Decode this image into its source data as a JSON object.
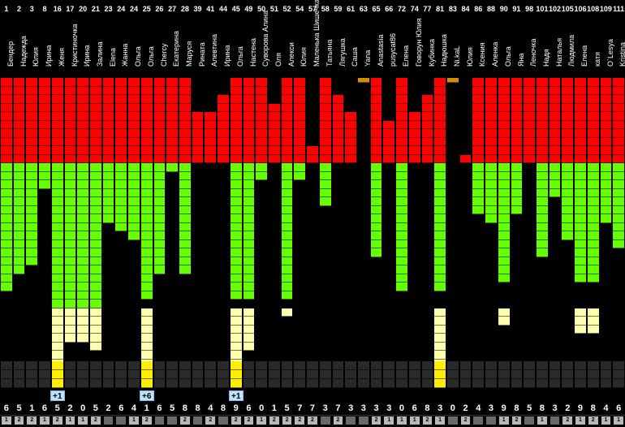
{
  "colors": {
    "red": "#ff0000",
    "green": "#66ff00",
    "cream": "#ffffb0",
    "yellow": "#ffee00",
    "orange": "#d09000",
    "greyFiller": "#2a2a2a"
  },
  "columns": [
    {
      "num": "1",
      "name": "Бендер",
      "score": "6",
      "badge": "1",
      "red": 10,
      "green": 15,
      "cream": 0,
      "yellow": 0,
      "orange": 0
    },
    {
      "num": "2",
      "name": "Надежда",
      "score": "5",
      "badge": "2",
      "red": 10,
      "green": 13,
      "cream": 0,
      "yellow": 0,
      "orange": 0
    },
    {
      "num": "3",
      "name": "Юлия",
      "score": "1",
      "badge": "2",
      "red": 10,
      "green": 12,
      "cream": 0,
      "yellow": 0,
      "orange": 0
    },
    {
      "num": "8",
      "name": "Ирина",
      "score": "6",
      "badge": "1",
      "red": 10,
      "green": 3,
      "cream": 0,
      "yellow": 0,
      "orange": 0
    },
    {
      "num": "16",
      "name": "Женя",
      "score": "5",
      "badge": "2",
      "red": 10,
      "green": 17,
      "cream": 7,
      "yellow": 3,
      "orange": 0
    },
    {
      "num": "17",
      "name": "Кристиночка",
      "score": "2",
      "badge": "1",
      "red": 10,
      "green": 17,
      "cream": 4,
      "yellow": 0,
      "orange": 0
    },
    {
      "num": "20",
      "name": "Ирина",
      "score": "0",
      "badge": "1",
      "red": 10,
      "green": 17,
      "cream": 4,
      "yellow": 0,
      "orange": 0
    },
    {
      "num": "21",
      "name": "Залина",
      "score": "5",
      "badge": "2",
      "red": 10,
      "green": 17,
      "cream": 5,
      "yellow": 0,
      "orange": 0
    },
    {
      "num": "23",
      "name": "Elena",
      "score": "2",
      "badge": "",
      "red": 10,
      "green": 7,
      "cream": 0,
      "yellow": 0,
      "orange": 0
    },
    {
      "num": "24",
      "name": "Жанна",
      "score": "6",
      "badge": "",
      "red": 10,
      "green": 8,
      "cream": 0,
      "yellow": 0,
      "orange": 0
    },
    {
      "num": "24",
      "name": "Ольга",
      "score": "4",
      "badge": "1",
      "red": 10,
      "green": 9,
      "cream": 0,
      "yellow": 0,
      "orange": 0
    },
    {
      "num": "25",
      "name": "Ольга",
      "score": "1",
      "badge": "2",
      "red": 10,
      "green": 16,
      "cream": 7,
      "yellow": 3,
      "orange": 0
    },
    {
      "num": "26",
      "name": "Chercy",
      "score": "6",
      "badge": "",
      "red": 10,
      "green": 13,
      "cream": 0,
      "yellow": 0,
      "orange": 0
    },
    {
      "num": "27",
      "name": "Екатерина",
      "score": "5",
      "badge": "",
      "red": 10,
      "green": 1,
      "cream": 0,
      "yellow": 0,
      "orange": 0
    },
    {
      "num": "28",
      "name": "Маруся",
      "score": "8",
      "badge": "2",
      "red": 10,
      "green": 13,
      "cream": 0,
      "yellow": 0,
      "orange": 0
    },
    {
      "num": "39",
      "name": "Рината",
      "score": "8",
      "badge": "",
      "red": 6,
      "green": 0,
      "cream": 0,
      "yellow": 0,
      "orange": 0
    },
    {
      "num": "41",
      "name": "Алевтина",
      "score": "4",
      "badge": "2",
      "red": 6,
      "green": 0,
      "cream": 0,
      "yellow": 0,
      "orange": 0
    },
    {
      "num": "44",
      "name": "Ирина",
      "score": "8",
      "badge": "",
      "red": 8,
      "green": 0,
      "cream": 0,
      "yellow": 0,
      "orange": 0
    },
    {
      "num": "45",
      "name": "Ольга",
      "score": "9",
      "badge": "2",
      "red": 10,
      "green": 16,
      "cream": 7,
      "yellow": 3,
      "orange": 0
    },
    {
      "num": "49",
      "name": "Настена",
      "score": "6",
      "badge": "2",
      "red": 10,
      "green": 16,
      "cream": 5,
      "yellow": 0,
      "orange": 0
    },
    {
      "num": "50",
      "name": "Суворова Алина",
      "score": "0",
      "badge": "1",
      "red": 10,
      "green": 2,
      "cream": 0,
      "yellow": 0,
      "orange": 0
    },
    {
      "num": "51",
      "name": "Оля",
      "score": "1",
      "badge": "2",
      "red": 7,
      "green": 0,
      "cream": 0,
      "yellow": 0,
      "orange": 0
    },
    {
      "num": "52",
      "name": "Алекси",
      "score": "5",
      "badge": "2",
      "red": 10,
      "green": 16,
      "cream": 1,
      "yellow": 0,
      "orange": 0
    },
    {
      "num": "54",
      "name": "Юлия",
      "score": "7",
      "badge": "2",
      "red": 10,
      "green": 2,
      "cream": 0,
      "yellow": 0,
      "orange": 0
    },
    {
      "num": "57",
      "name": "Маленька Шишечка",
      "score": "7",
      "badge": "2",
      "red": 2,
      "green": 0,
      "cream": 0,
      "yellow": 0,
      "orange": 0
    },
    {
      "num": "58",
      "name": "Татьяна",
      "score": "3",
      "badge": "",
      "red": 10,
      "green": 5,
      "cream": 0,
      "yellow": 0,
      "orange": 0
    },
    {
      "num": "59",
      "name": "Лягушка",
      "score": "7",
      "badge": "2",
      "red": 8,
      "green": 0,
      "cream": 0,
      "yellow": 0,
      "orange": 0
    },
    {
      "num": "61",
      "name": "Саша",
      "score": "3",
      "badge": "",
      "red": 6,
      "green": 0,
      "cream": 0,
      "yellow": 0,
      "orange": 0
    },
    {
      "num": "63",
      "name": "Yana",
      "score": "3",
      "badge": "",
      "red": 0,
      "green": 0,
      "cream": 0,
      "yellow": 0,
      "orange": 1
    },
    {
      "num": "65",
      "name": "Anastasia",
      "score": "3",
      "badge": "2",
      "red": 10,
      "green": 11,
      "cream": 0,
      "yellow": 0,
      "orange": 0
    },
    {
      "num": "66",
      "name": "pusycat86",
      "score": "3",
      "badge": "1",
      "red": 5,
      "green": 0,
      "cream": 0,
      "yellow": 0,
      "orange": 0
    },
    {
      "num": "72",
      "name": "Елена",
      "score": "0",
      "badge": "1",
      "red": 10,
      "green": 15,
      "cream": 0,
      "yellow": 0,
      "orange": 0
    },
    {
      "num": "74",
      "name": "Говорун Юлия",
      "score": "6",
      "badge": "1",
      "red": 6,
      "green": 0,
      "cream": 0,
      "yellow": 0,
      "orange": 0
    },
    {
      "num": "77",
      "name": "Кубинка",
      "score": "8",
      "badge": "2",
      "red": 8,
      "green": 0,
      "cream": 0,
      "yellow": 0,
      "orange": 0
    },
    {
      "num": "81",
      "name": "Надюшка",
      "score": "3",
      "badge": "1",
      "red": 10,
      "green": 15,
      "cream": 7,
      "yellow": 3,
      "orange": 0
    },
    {
      "num": "83",
      "name": "Ni.kaL",
      "score": "0",
      "badge": "",
      "red": 0,
      "green": 0,
      "cream": 0,
      "yellow": 0,
      "orange": 1
    },
    {
      "num": "84",
      "name": "Юлия",
      "score": "2",
      "badge": "2",
      "red": 1,
      "green": 0,
      "cream": 0,
      "yellow": 0,
      "orange": 0
    },
    {
      "num": "86",
      "name": "Ксения",
      "score": "4",
      "badge": "",
      "red": 10,
      "green": 6,
      "cream": 0,
      "yellow": 0,
      "orange": 0
    },
    {
      "num": "88",
      "name": "Аленка",
      "score": "3",
      "badge": "",
      "red": 10,
      "green": 7,
      "cream": 0,
      "yellow": 0,
      "orange": 0
    },
    {
      "num": "90",
      "name": "Ольга",
      "score": "9",
      "badge": "1",
      "red": 10,
      "green": 14,
      "cream": 2,
      "yellow": 0,
      "orange": 0
    },
    {
      "num": "91",
      "name": "Яна",
      "score": "8",
      "badge": "2",
      "red": 10,
      "green": 6,
      "cream": 0,
      "yellow": 0,
      "orange": 0
    },
    {
      "num": "98",
      "name": "Леночка",
      "score": "5",
      "badge": "",
      "red": 10,
      "green": 0,
      "cream": 0,
      "yellow": 0,
      "orange": 0
    },
    {
      "num": "101",
      "name": "Надя",
      "score": "8",
      "badge": "1",
      "red": 10,
      "green": 11,
      "cream": 0,
      "yellow": 0,
      "orange": 0
    },
    {
      "num": "102",
      "name": "Наталья",
      "score": "3",
      "badge": "",
      "red": 10,
      "green": 4,
      "cream": 0,
      "yellow": 0,
      "orange": 0
    },
    {
      "num": "105",
      "name": "Людмила",
      "score": "2",
      "badge": "2",
      "red": 10,
      "green": 9,
      "cream": 0,
      "yellow": 0,
      "orange": 0
    },
    {
      "num": "106",
      "name": "Елена",
      "score": "9",
      "badge": "1",
      "red": 10,
      "green": 14,
      "cream": 3,
      "yellow": 0,
      "orange": 0
    },
    {
      "num": "108",
      "name": "катя",
      "score": "8",
      "badge": "2",
      "red": 10,
      "green": 14,
      "cream": 3,
      "yellow": 0,
      "orange": 0
    },
    {
      "num": "109",
      "name": "O`Lesya",
      "score": "4",
      "badge": "1",
      "red": 10,
      "green": 7,
      "cream": 0,
      "yellow": 0,
      "orange": 0
    },
    {
      "num": "111",
      "name": "Kristina",
      "score": "6",
      "badge": "1",
      "red": 10,
      "green": 10,
      "cream": 0,
      "yellow": 0,
      "orange": 0
    }
  ],
  "plus_labels": [
    {
      "col": 4,
      "text": "+1"
    },
    {
      "col": 11,
      "text": "+6"
    },
    {
      "col": 18,
      "text": "+1"
    }
  ]
}
